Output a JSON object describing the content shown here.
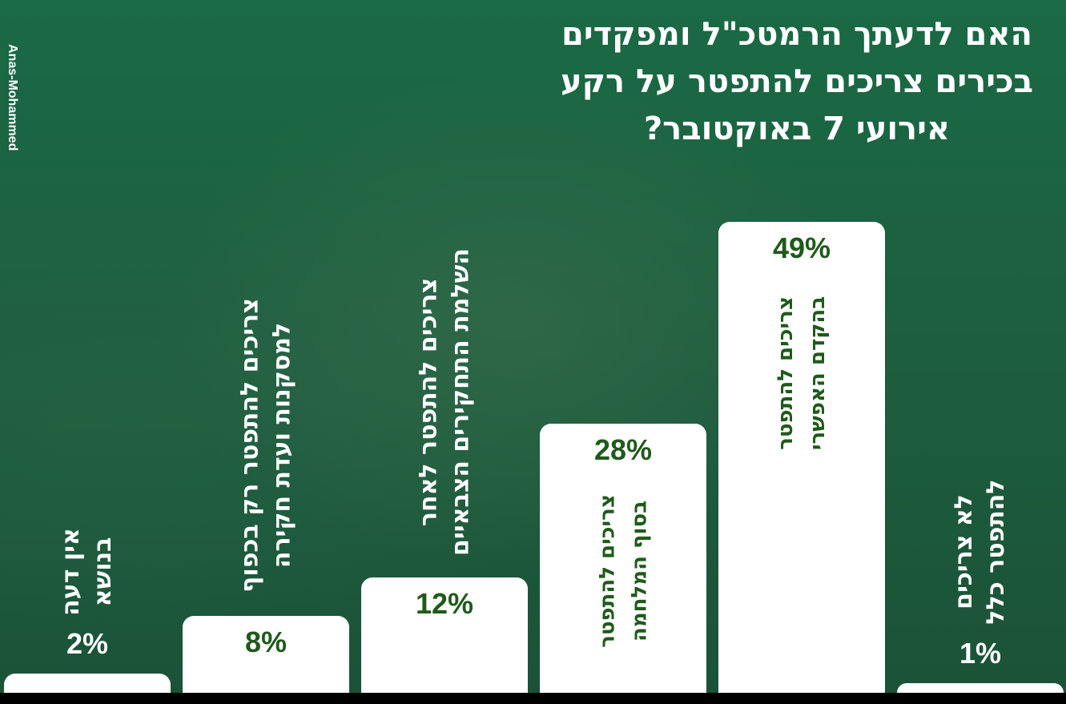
{
  "chart_data": {
    "type": "bar",
    "title": "האם לדעתך הרמטכ\"ל ומפקדים בכירים צריכים להתפטר על רקע אירועי 7 באוקטובר?",
    "annotation": "Anas-Mohammed",
    "categories": [
      "אין דעה בנושא",
      "צריכים להתפטר רק בכפוף למסקנות ועדת חקירה",
      "צריכים להתפטר לאחר השלמת התחקירים הצבאיים",
      "צריכים להתפטר בסוף המלחמה",
      "צריכים להתפטר בהקדם האפשרי",
      "לא צריכים להתפטר כלל"
    ],
    "values": [
      2,
      8,
      12,
      28,
      49,
      1
    ],
    "value_labels": [
      "2%",
      "8%",
      "12%",
      "28%",
      "49%",
      "1%"
    ],
    "color": "#ffffff"
  }
}
